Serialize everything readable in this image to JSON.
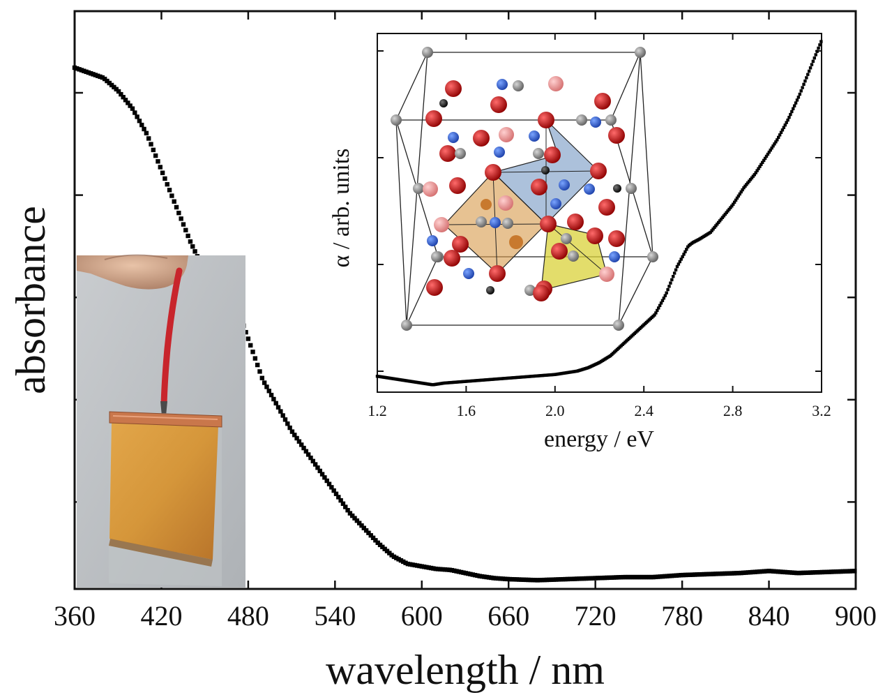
{
  "chart_data": [
    {
      "type": "scatter",
      "xlabel": "wavelength / nm",
      "ylabel": "absorbance",
      "xlim": [
        360,
        900
      ],
      "ylim": [
        0,
        1
      ],
      "xticks": [
        360,
        420,
        480,
        540,
        600,
        660,
        720,
        780,
        840,
        900
      ],
      "tick_labels": [
        "360",
        "420",
        "480",
        "540",
        "600",
        "660",
        "720",
        "780",
        "840",
        "900"
      ],
      "ytick_labels_shown": false,
      "grid": false,
      "marker": "square",
      "color": "#000000",
      "series": [
        {
          "x": [
            360,
            370,
            380,
            390,
            400,
            410,
            420,
            430,
            440,
            450,
            460,
            465,
            470,
            475,
            480,
            485,
            490,
            500,
            510,
            520,
            530,
            540,
            550,
            560,
            570,
            580,
            590,
            600,
            610,
            620,
            630,
            640,
            650,
            660,
            680,
            700,
            720,
            740,
            760,
            780,
            800,
            820,
            840,
            860,
            880,
            900
          ],
          "y": [
            1.0,
            0.99,
            0.98,
            0.955,
            0.92,
            0.87,
            0.8,
            0.73,
            0.66,
            0.6,
            0.56,
            0.55,
            0.54,
            0.51,
            0.47,
            0.43,
            0.39,
            0.34,
            0.29,
            0.25,
            0.21,
            0.17,
            0.13,
            0.1,
            0.07,
            0.045,
            0.03,
            0.025,
            0.02,
            0.018,
            0.012,
            0.006,
            0.002,
            0.0,
            -0.002,
            0.0,
            0.002,
            0.004,
            0.004,
            0.008,
            0.01,
            0.012,
            0.016,
            0.012,
            0.014,
            0.016
          ]
        }
      ]
    },
    {
      "type": "line",
      "xlabel": "energy / eV",
      "ylabel": "α / arb. units",
      "xlim": [
        1.2,
        3.2
      ],
      "ylim": [
        0,
        1
      ],
      "xticks": [
        1.2,
        1.6,
        2.0,
        2.4,
        2.8,
        3.2
      ],
      "tick_labels": [
        "1.2",
        "1.6",
        "2.0",
        "2.4",
        "2.8",
        "3.2"
      ],
      "ytick_labels_shown": false,
      "grid": false,
      "color": "#000000",
      "series": [
        {
          "x": [
            1.2,
            1.3,
            1.4,
            1.45,
            1.5,
            1.6,
            1.7,
            1.8,
            1.9,
            2.0,
            2.1,
            2.15,
            2.2,
            2.25,
            2.3,
            2.35,
            2.4,
            2.45,
            2.5,
            2.55,
            2.6,
            2.62,
            2.65,
            2.7,
            2.75,
            2.8,
            2.85,
            2.9,
            2.95,
            3.0,
            3.05,
            3.1,
            3.15,
            3.2
          ],
          "y": [
            0.02,
            0.01,
            0.0,
            -0.005,
            0.0,
            0.005,
            0.01,
            0.015,
            0.02,
            0.025,
            0.035,
            0.045,
            0.06,
            0.08,
            0.11,
            0.14,
            0.17,
            0.2,
            0.26,
            0.34,
            0.4,
            0.41,
            0.42,
            0.44,
            0.48,
            0.52,
            0.57,
            0.61,
            0.66,
            0.71,
            0.77,
            0.84,
            0.92,
            1.0
          ]
        }
      ]
    }
  ],
  "figure": {
    "inset_structure": "crystal-structure-unit-cell",
    "inset_photo": "photo-electrode-film",
    "colors": {
      "data": "#000000",
      "atom_red": "#b30000",
      "atom_blue": "#2a5bd7",
      "atom_grey": "#8a8a8a",
      "atom_pink": "#f29a9a",
      "atom_black": "#111111",
      "poly_blue": "#7f9fc8",
      "poly_orange": "#d79a4a",
      "poly_yellow": "#d9d23a",
      "film_amber": "#c98a2b",
      "wire_red": "#c8252c",
      "copper": "#c9774b"
    }
  }
}
